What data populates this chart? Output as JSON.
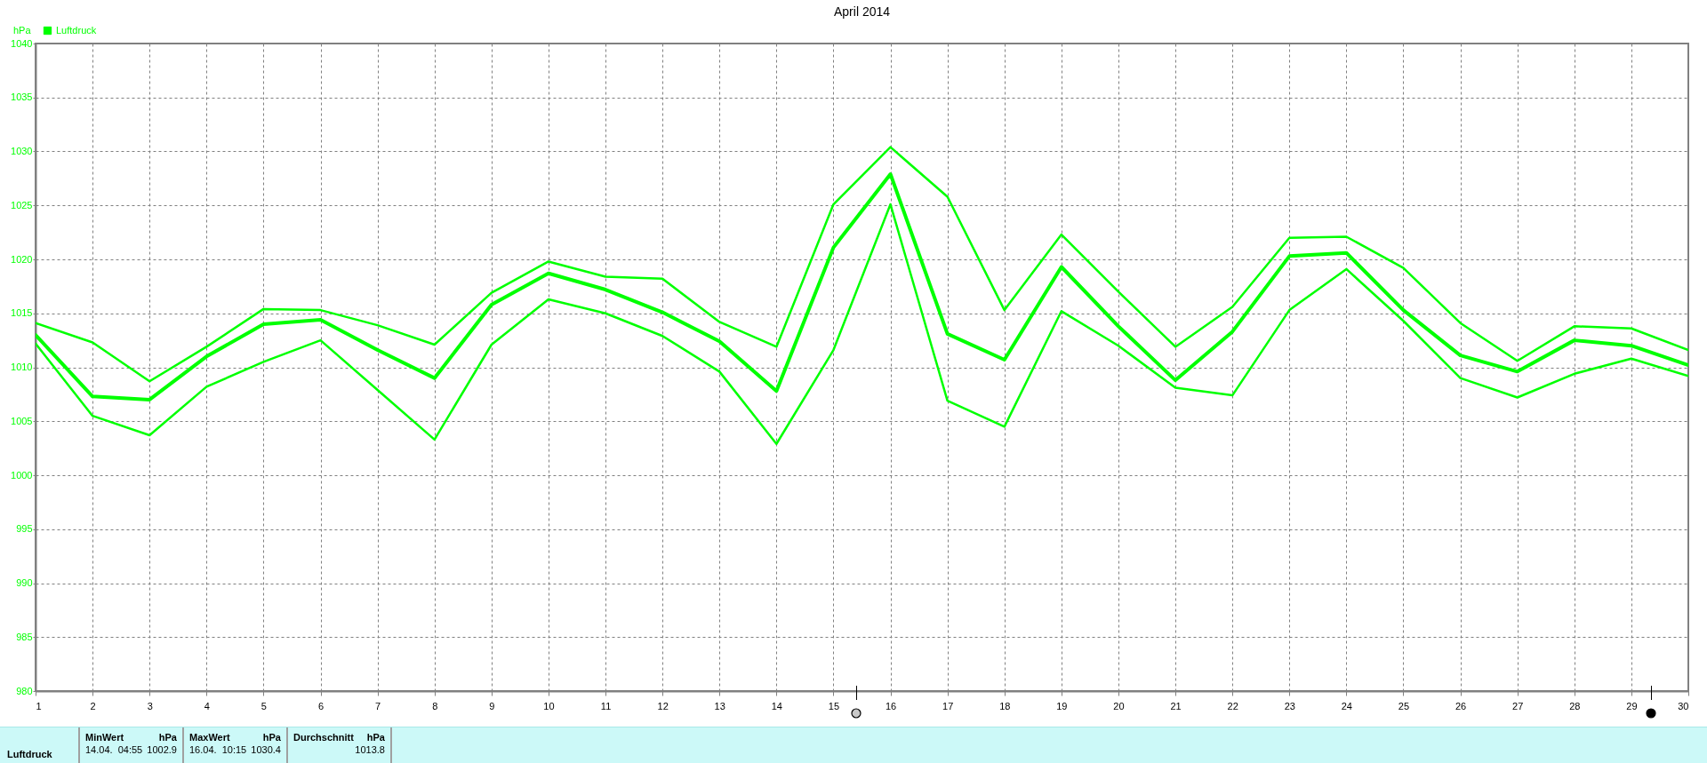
{
  "chart_data": {
    "type": "line",
    "title": "April 2014",
    "ylabel": "hPa",
    "x": [
      1,
      2,
      3,
      4,
      5,
      6,
      7,
      8,
      9,
      10,
      11,
      12,
      13,
      14,
      15,
      16,
      17,
      18,
      19,
      20,
      21,
      22,
      23,
      24,
      25,
      26,
      27,
      28,
      29,
      30
    ],
    "xlim": [
      1,
      30
    ],
    "xticks": [
      1,
      2,
      3,
      4,
      5,
      6,
      7,
      8,
      9,
      10,
      11,
      12,
      13,
      14,
      15,
      16,
      17,
      18,
      19,
      20,
      21,
      22,
      23,
      24,
      25,
      26,
      27,
      28,
      29,
      30
    ],
    "ylim": [
      980,
      1040
    ],
    "yticks": [
      980,
      985,
      990,
      995,
      1000,
      1005,
      1010,
      1015,
      1020,
      1025,
      1030,
      1035,
      1040
    ],
    "grid": true,
    "legend": "top left",
    "series": [
      {
        "color": "#00ff00",
        "values": [
          1014.1,
          1012.3,
          1008.7,
          1011.9,
          1015.4,
          1015.3,
          1013.9,
          1012.1,
          1016.9,
          1019.8,
          1018.4,
          1018.2,
          1014.2,
          1011.9,
          1025.1,
          1030.4,
          1025.8,
          1015.3,
          1022.3,
          1017.0,
          1011.9,
          1015.6,
          1022.0,
          1022.1,
          1019.2,
          1014.1,
          1010.6,
          1013.8,
          1013.6,
          1011.6
        ]
      },
      {
        "name": "Luftdruck",
        "color": "#00ff00",
        "values": [
          1013.0,
          1007.3,
          1007.0,
          1011.0,
          1014.0,
          1014.4,
          1011.6,
          1009.0,
          1015.8,
          1018.7,
          1017.2,
          1015.1,
          1012.4,
          1007.8,
          1021.1,
          1027.9,
          1013.1,
          1010.7,
          1019.3,
          1013.8,
          1008.8,
          1013.3,
          1020.3,
          1020.6,
          1015.3,
          1011.1,
          1009.6,
          1012.5,
          1012.0,
          1010.2
        ]
      },
      {
        "color": "#00ff00",
        "values": [
          1012.2,
          1005.5,
          1003.7,
          1008.2,
          1010.5,
          1012.5,
          1007.9,
          1003.3,
          1012.1,
          1016.3,
          1015.0,
          1012.9,
          1009.6,
          1002.9,
          1011.6,
          1025.1,
          1006.9,
          1004.5,
          1015.2,
          1012.0,
          1008.1,
          1007.4,
          1015.3,
          1019.1,
          1014.3,
          1009.0,
          1007.2,
          1009.4,
          1010.8,
          1009.2
        ]
      }
    ],
    "annotations": [
      "Luftdruck",
      "MinWert",
      "hPa",
      "14.04.  04:55",
      "1002.9",
      "MaxWert",
      "hPa",
      "16.04.  10:15",
      "1030.4",
      "Durchschnitt",
      "hPa",
      "1013.8"
    ]
  }
}
